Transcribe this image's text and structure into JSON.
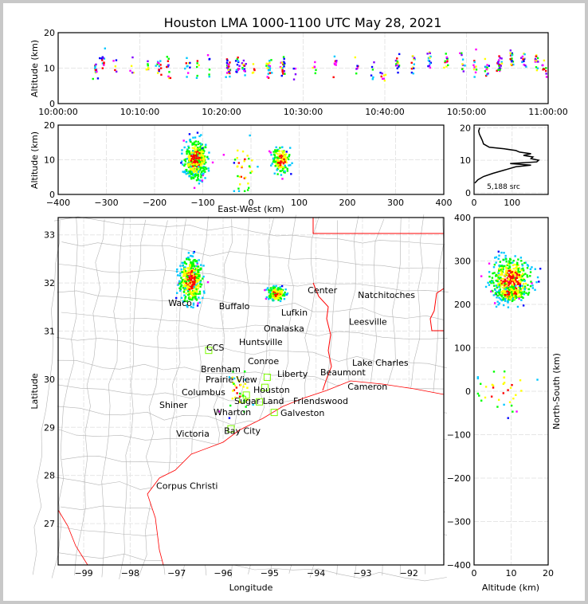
{
  "chart_data": [
    {
      "type": "scatter",
      "name": "time-height",
      "title": "Houston LMA 1000-1100 UTC May 28, 2021",
      "ylabel": "Altitude (km)",
      "ylim": [
        0,
        20
      ],
      "xlim_minutes": [
        0,
        60
      ],
      "yticks": [
        "0",
        "10",
        "20"
      ],
      "xticks": [
        "10:00:00",
        "10:10:00",
        "10:20:00",
        "10:30:00",
        "10:40:00",
        "10:50:00",
        "11:00:00"
      ],
      "bursts": [
        {
          "t": 4.5,
          "alt": 9.5,
          "n": 14
        },
        {
          "t": 5.5,
          "alt": 11.5,
          "n": 12
        },
        {
          "t": 7,
          "alt": 10,
          "n": 5
        },
        {
          "t": 9,
          "alt": 10.5,
          "n": 5
        },
        {
          "t": 11,
          "alt": 10,
          "n": 8
        },
        {
          "t": 12.3,
          "alt": 10.5,
          "n": 14
        },
        {
          "t": 13.5,
          "alt": 10.5,
          "n": 12
        },
        {
          "t": 15.8,
          "alt": 10.5,
          "n": 10
        },
        {
          "t": 17,
          "alt": 10,
          "n": 6
        },
        {
          "t": 18.5,
          "alt": 11,
          "n": 6
        },
        {
          "t": 20.8,
          "alt": 10,
          "n": 25
        },
        {
          "t": 22,
          "alt": 10,
          "n": 14
        },
        {
          "t": 22.7,
          "alt": 10,
          "n": 12
        },
        {
          "t": 24,
          "alt": 9.5,
          "n": 5
        },
        {
          "t": 25.8,
          "alt": 10,
          "n": 22
        },
        {
          "t": 27.5,
          "alt": 10,
          "n": 22
        },
        {
          "t": 29,
          "alt": 9.5,
          "n": 4
        },
        {
          "t": 31.5,
          "alt": 10.5,
          "n": 6
        },
        {
          "t": 34,
          "alt": 11,
          "n": 8
        },
        {
          "t": 36.5,
          "alt": 10.5,
          "n": 6
        },
        {
          "t": 38.5,
          "alt": 10,
          "n": 6
        },
        {
          "t": 39.8,
          "alt": 7,
          "n": 8
        },
        {
          "t": 41.5,
          "alt": 11,
          "n": 14
        },
        {
          "t": 43.5,
          "alt": 12,
          "n": 12
        },
        {
          "t": 45.5,
          "alt": 12.5,
          "n": 14
        },
        {
          "t": 47.5,
          "alt": 12.5,
          "n": 12
        },
        {
          "t": 49.5,
          "alt": 12.5,
          "n": 10
        },
        {
          "t": 51,
          "alt": 11.5,
          "n": 10
        },
        {
          "t": 52.5,
          "alt": 11,
          "n": 12
        },
        {
          "t": 54,
          "alt": 10.5,
          "n": 24
        },
        {
          "t": 55.5,
          "alt": 12,
          "n": 18
        },
        {
          "t": 57,
          "alt": 12,
          "n": 14
        },
        {
          "t": 58.5,
          "alt": 12,
          "n": 14
        },
        {
          "t": 59.5,
          "alt": 10,
          "n": 10
        }
      ]
    },
    {
      "type": "scatter",
      "name": "east-west-altitude",
      "xlabel": "East-West (km)",
      "ylabel": "Altitude (km)",
      "xlim": [
        -400,
        400
      ],
      "ylim": [
        0,
        20
      ],
      "xticks": [
        "−400",
        "−300",
        "−200",
        "−100",
        "0",
        "100",
        "200",
        "300",
        "400"
      ],
      "yticks": [
        "0",
        "10",
        "20"
      ]
    },
    {
      "type": "line",
      "name": "altitude-histogram",
      "xlim": [
        0,
        195
      ],
      "ylim": [
        0,
        20
      ],
      "xticks": [
        "0",
        "100"
      ],
      "yticks": [
        "0",
        "10",
        "20"
      ],
      "annotation": "5,188 src",
      "alt": [
        3,
        4,
        5,
        6,
        7,
        8,
        8.5,
        9,
        9.5,
        10,
        10.5,
        11,
        11.5,
        12,
        12.5,
        13,
        13.5,
        14,
        15,
        16,
        17,
        18,
        19,
        20
      ],
      "count": [
        2,
        10,
        25,
        50,
        80,
        110,
        150,
        95,
        165,
        170,
        150,
        155,
        130,
        150,
        120,
        110,
        80,
        40,
        25,
        22,
        18,
        14,
        12,
        15
      ]
    },
    {
      "type": "scatter",
      "name": "plan-view",
      "xlabel": "Longitude",
      "ylabel": "Latitude",
      "xlim": [
        -99.55,
        -91.25
      ],
      "ylim": [
        26.14,
        33.36
      ],
      "xticks": [
        "−99",
        "−98",
        "−97",
        "−96",
        "−95",
        "−94",
        "−93",
        "−92"
      ],
      "yticks": [
        "27",
        "28",
        "29",
        "30",
        "31",
        "32",
        "33"
      ]
    },
    {
      "type": "scatter",
      "name": "altitude-north-south",
      "xlabel": "Altitude (km)",
      "ylabel": "North-South (km)",
      "xlim": [
        0,
        20
      ],
      "ylim": [
        -400,
        400
      ],
      "xticks": [
        "0",
        "10",
        "20"
      ],
      "yticks": [
        "−400",
        "−300",
        "−200",
        "−100",
        "0",
        "100",
        "200",
        "300",
        "400"
      ]
    }
  ],
  "clusters": [
    {
      "name": "west-storm",
      "ew": -115,
      "ns": 255,
      "alt": 10,
      "ew_sd": 12,
      "ns_sd": 25,
      "alt_sd": 2.8,
      "n": 420
    },
    {
      "name": "east-storm",
      "ew": 62,
      "ns": 225,
      "alt": 10,
      "ew_sd": 9,
      "ns_sd": 8,
      "alt_sd": 2,
      "n": 160
    },
    {
      "name": "houston-scatter",
      "ew": -15,
      "ns": 0,
      "alt": 8,
      "ew_sd": 15,
      "ns_sd": 25,
      "alt_sd": 4,
      "n": 35
    }
  ],
  "network_center": {
    "lon": -95.5,
    "lat": 29.75
  },
  "colors": {
    "palette": [
      "#0000ff",
      "#00c8ff",
      "#00ff00",
      "#ffff00",
      "#ff0000",
      "#ff00ff",
      "#8000ff"
    ],
    "coast": "#ff0000",
    "county": "#b4b4b4",
    "station": "#7cfc00",
    "houston": "#ff8c00",
    "ccs": "#a02020"
  },
  "cities": [
    {
      "name": "Waco",
      "lon": -97.18,
      "lat": 31.59
    },
    {
      "name": "Buffalo",
      "lon": -96.09,
      "lat": 31.52
    },
    {
      "name": "Lufkin",
      "lon": -94.75,
      "lat": 31.39
    },
    {
      "name": "Center",
      "lon": -94.18,
      "lat": 31.85
    },
    {
      "name": "Natchitoches",
      "lon": -93.1,
      "lat": 31.75
    },
    {
      "name": "Leesville",
      "lon": -93.29,
      "lat": 31.2
    },
    {
      "name": "Huntsville",
      "lon": -95.57,
      "lat": 30.77
    },
    {
      "name": "Onalaska",
      "lon": -95.12,
      "lat": 30.86
    },
    {
      "name": "CCS",
      "lon": -96.36,
      "lat": 30.66,
      "color": "ccs"
    },
    {
      "name": "Conroe",
      "lon": -95.47,
      "lat": 30.38
    },
    {
      "name": "Brenham",
      "lon": -96.43,
      "lat": 30.21
    },
    {
      "name": "Prairie View",
      "lon": -95.93,
      "lat": 30.15
    },
    {
      "name": "Liberty",
      "lon": -94.8,
      "lat": 30.11
    },
    {
      "name": "Beaumont",
      "lon": -94.13,
      "lat": 30.15
    },
    {
      "name": "Lake Charles",
      "lon": -93.22,
      "lat": 30.28
    },
    {
      "name": "Houston",
      "lon": -95.36,
      "lat": 29.81,
      "color": "houston"
    },
    {
      "name": "Columbus",
      "lon": -96.55,
      "lat": 29.76
    },
    {
      "name": "Sugar Land",
      "lon": -95.66,
      "lat": 29.65
    },
    {
      "name": "Friendswood",
      "lon": -95.14,
      "lat": 29.56
    },
    {
      "name": "Cameron",
      "lon": -93.32,
      "lat": 29.85
    },
    {
      "name": "Shiner",
      "lon": -97.2,
      "lat": 29.48
    },
    {
      "name": "Wharton",
      "lon": -96.12,
      "lat": 29.35
    },
    {
      "name": "Galveston",
      "lon": -94.8,
      "lat": 29.35
    },
    {
      "name": "Bay City",
      "lon": -95.98,
      "lat": 28.93
    },
    {
      "name": "Victoria",
      "lon": -97.01,
      "lat": 28.87
    },
    {
      "name": "Corpus Christi",
      "lon": -97.44,
      "lat": 27.79
    }
  ],
  "stations": [
    {
      "lon": -96.31,
      "lat": 30.6
    },
    {
      "lon": -95.05,
      "lat": 30.04
    },
    {
      "lon": -95.1,
      "lat": 29.83
    },
    {
      "lon": -95.5,
      "lat": 29.67
    },
    {
      "lon": -95.22,
      "lat": 29.53
    },
    {
      "lon": -94.9,
      "lat": 29.31
    },
    {
      "lon": -95.83,
      "lat": 28.97
    },
    {
      "lon": -95.58,
      "lat": 29.58
    }
  ]
}
